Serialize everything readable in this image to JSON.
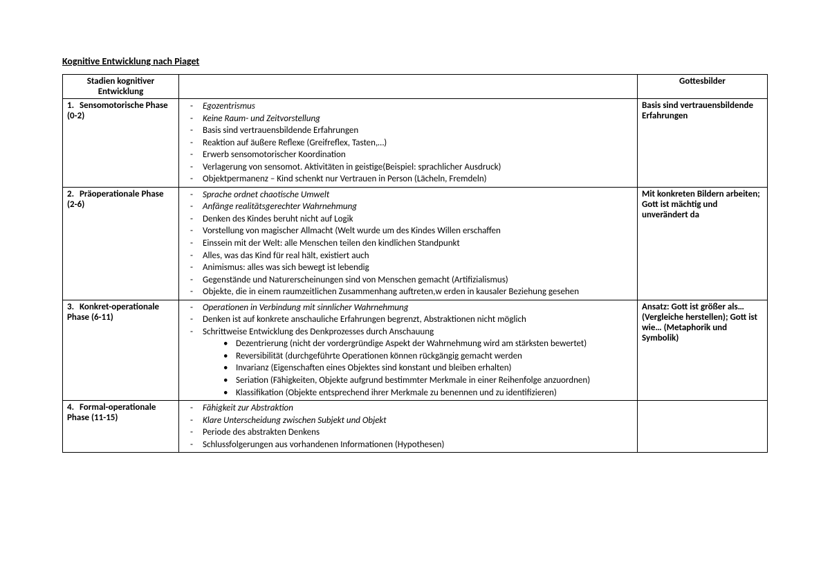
{
  "title": "Kognitive Entwicklung nach Piaget",
  "header": {
    "col1": "Stadien kognitiver Entwicklung",
    "col2": "",
    "col3": "Gottesbilder"
  },
  "rows": [
    {
      "num": "1.",
      "stage": "Sensomotorische Phase (0-2)",
      "items": [
        {
          "t": "Egozentrismus",
          "i": true
        },
        {
          "t": "Keine Raum- und Zeitvorstellung",
          "i": true
        },
        {
          "t": "Basis sind vertrauensbildende Erfahrungen"
        },
        {
          "t": "Reaktion auf äußere Reflexe (Greifreflex, Tasten,…)"
        },
        {
          "t": "Erwerb sensomotorischer Koordination"
        },
        {
          "t": "Verlagerung von sensomot. Aktivitäten in geistige(Beispiel: sprachlicher Ausdruck)"
        },
        {
          "t": "Objektpermanenz – Kind schenkt nur Vertrauen in Person (Lächeln, Fremdeln)"
        }
      ],
      "gott": "Basis sind vertrauensbildende Erfahrungen"
    },
    {
      "num": "2.",
      "stage": "Präoperationale Phase (2-6)",
      "items": [
        {
          "t": "Sprache ordnet chaotische Umwelt",
          "i": true
        },
        {
          "t": "Anfänge realitätsgerechter Wahrnehmung",
          "i": true
        },
        {
          "t": "Denken des Kindes beruht nicht auf Logik"
        },
        {
          "t": "Vorstellung von magischer Allmacht (Welt wurde um des Kindes Willen erschaffen"
        },
        {
          "t": "Einssein mit der Welt: alle Menschen teilen den kindlichen Standpunkt"
        },
        {
          "t": "Alles, was das Kind für real hält, existiert auch"
        },
        {
          "t": "Animismus: alles was sich bewegt ist lebendig"
        },
        {
          "t": "Gegenstände und Naturerscheinungen sind von Menschen gemacht (Artifizialismus)"
        },
        {
          "t": "Objekte, die in einem raumzeitlichen Zusammenhang auftreten,w erden in kausaler Beziehung gesehen"
        }
      ],
      "gott": "Mit konkreten Bildern arbeiten; Gott ist mächtig und unverändert da"
    },
    {
      "num": "3.",
      "stage": "Konkret-operationale Phase (6-11)",
      "items": [
        {
          "t": "Operationen in Verbindung mit sinnlicher Wahrnehmung",
          "i": true
        },
        {
          "t": "Denken ist auf konkrete anschauliche Erfahrungen begrenzt, Abstraktionen nicht möglich"
        },
        {
          "t": "Schrittweise Entwicklung des Denkprozesses durch Anschauung",
          "sub": [
            "Dezentrierung (nicht der vordergründige Aspekt der Wahrnehmung wird am stärksten bewertet)",
            "Reversibilität (durchgeführte Operationen können rückgängig gemacht werden",
            "Invarianz (Eigenschaften eines Objektes sind konstant und bleiben erhalten)",
            "Seriation (Fähigkeiten, Objekte aufgrund bestimmter Merkmale in einer Reihenfolge anzuordnen)",
            "Klassifikation (Objekte entsprechend ihrer Merkmale zu benennen und zu identifizieren)"
          ]
        }
      ],
      "gott": "Ansatz: Gott ist größer als… (Vergleiche herstellen); Gott ist wie… (Metaphorik und Symbolik)"
    },
    {
      "num": "4.",
      "stage": "Formal-operationale Phase (11-15)",
      "items": [
        {
          "t": "Fähigkeit zur Abstraktion",
          "i": true
        },
        {
          "t": "Klare Unterscheidung zwischen Subjekt und Objekt",
          "i": true
        },
        {
          "t": "Periode des abstrakten Denkens"
        },
        {
          "t": "Schlussfolgerungen aus vorhandenen Informationen (Hypothesen)"
        }
      ],
      "gott": ""
    }
  ]
}
